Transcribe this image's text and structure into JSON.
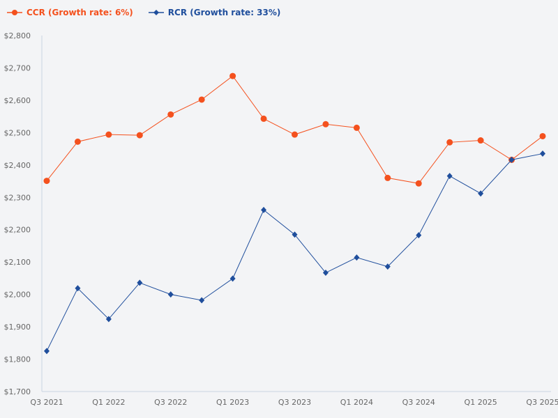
{
  "chart_data": {
    "type": "line",
    "title": "",
    "xlabel": "",
    "ylabel": "",
    "ylim": [
      1700,
      2800
    ],
    "yticks": [
      1700,
      1800,
      1900,
      2000,
      2100,
      2200,
      2300,
      2400,
      2500,
      2600,
      2700,
      2800
    ],
    "ytick_labels": [
      "$1,700",
      "$1,800",
      "$1,900",
      "$2,000",
      "$2,100",
      "$2,200",
      "$2,300",
      "$2,400",
      "$2,500",
      "$2,600",
      "$2,700",
      "$2,800"
    ],
    "categories": [
      "Q3 2021",
      "Q4 2021",
      "Q1 2022",
      "Q2 2022",
      "Q3 2022",
      "Q4 2022",
      "Q1 2023",
      "Q2 2023",
      "Q3 2023",
      "Q4 2023",
      "Q1 2024",
      "Q2 2024",
      "Q3 2024",
      "Q4 2024",
      "Q1 2025",
      "Q2 2025",
      "Q3 2025"
    ],
    "xtick_labels": [
      "Q3 2021",
      "Q1 2022",
      "Q3 2022",
      "Q1 2023",
      "Q3 2023",
      "Q1 2024",
      "Q3 2024",
      "Q1 2025",
      "Q3 2025"
    ],
    "grid": false,
    "legend_position": "top-left",
    "series": [
      {
        "name": "CCR (Growth rate: 6%)",
        "color": "#f4511e",
        "marker": "circle",
        "values": [
          2351,
          2472,
          2494,
          2492,
          2556,
          2602,
          2675,
          2543,
          2494,
          2526,
          2515,
          2360,
          2343,
          2470,
          2476,
          2416,
          2489
        ]
      },
      {
        "name": "RCR (Growth rate: 33%)",
        "color": "#1f4e9c",
        "marker": "diamond",
        "values": [
          1825,
          2019,
          1924,
          2036,
          2000,
          1982,
          2049,
          2261,
          2185,
          2067,
          2114,
          2086,
          2183,
          2366,
          2312,
          2416,
          2435
        ]
      }
    ]
  }
}
